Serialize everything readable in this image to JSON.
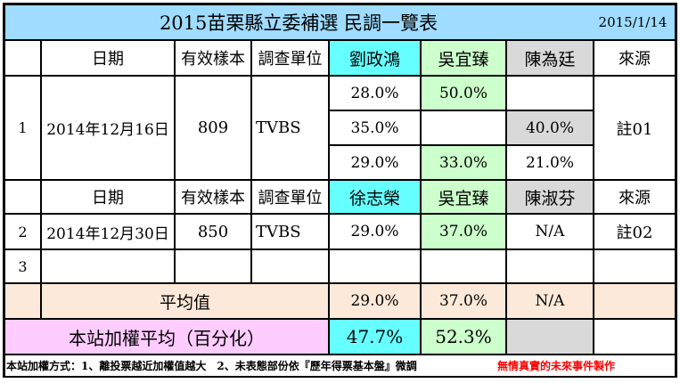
{
  "header": {
    "title": "2015苗栗縣立委補選 民調一覽表",
    "date": "2015/1/14"
  },
  "columns": {
    "date": "日期",
    "sample": "有效樣本",
    "org": "調查單位",
    "source": "來源"
  },
  "poll1": {
    "index": "1",
    "date": "2014年12月16日",
    "sample": "809",
    "org": "TVBS",
    "candidates": [
      "劉政鴻",
      "吳宜臻",
      "陳為廷"
    ],
    "rows": [
      [
        "28.0%",
        "50.0%",
        ""
      ],
      [
        "35.0%",
        "",
        "40.0%"
      ],
      [
        "29.0%",
        "33.0%",
        "21.0%"
      ]
    ],
    "source": "註01"
  },
  "poll2": {
    "index": "2",
    "date": "2014年12月30日",
    "sample": "850",
    "org": "TVBS",
    "candidates": [
      "徐志榮",
      "吳宜臻",
      "陳淑芬"
    ],
    "rows": [
      [
        "29.0%",
        "37.0%",
        "N/A"
      ]
    ],
    "source": "註02"
  },
  "row3": {
    "index": "3"
  },
  "average": {
    "label": "平均值",
    "values": [
      "29.0%",
      "37.0%",
      "N/A"
    ]
  },
  "weighted": {
    "label": "本站加權平均（百分化）",
    "values": [
      "47.7%",
      "52.3%"
    ]
  },
  "footer": {
    "note": "本站加權方式：1、離投票越近加權值越大　2、未表態部份依『歷年得票基本盤』微調",
    "brand": "無情真實的未來事件製作"
  },
  "colors": {
    "title_bg": "#9fdcff",
    "cyan": "#66ffff",
    "green": "#ccffcc",
    "gray": "#d9d9d9",
    "peach": "#fde9d9",
    "pink": "#ffccff",
    "brand_red": "#ff0000"
  }
}
